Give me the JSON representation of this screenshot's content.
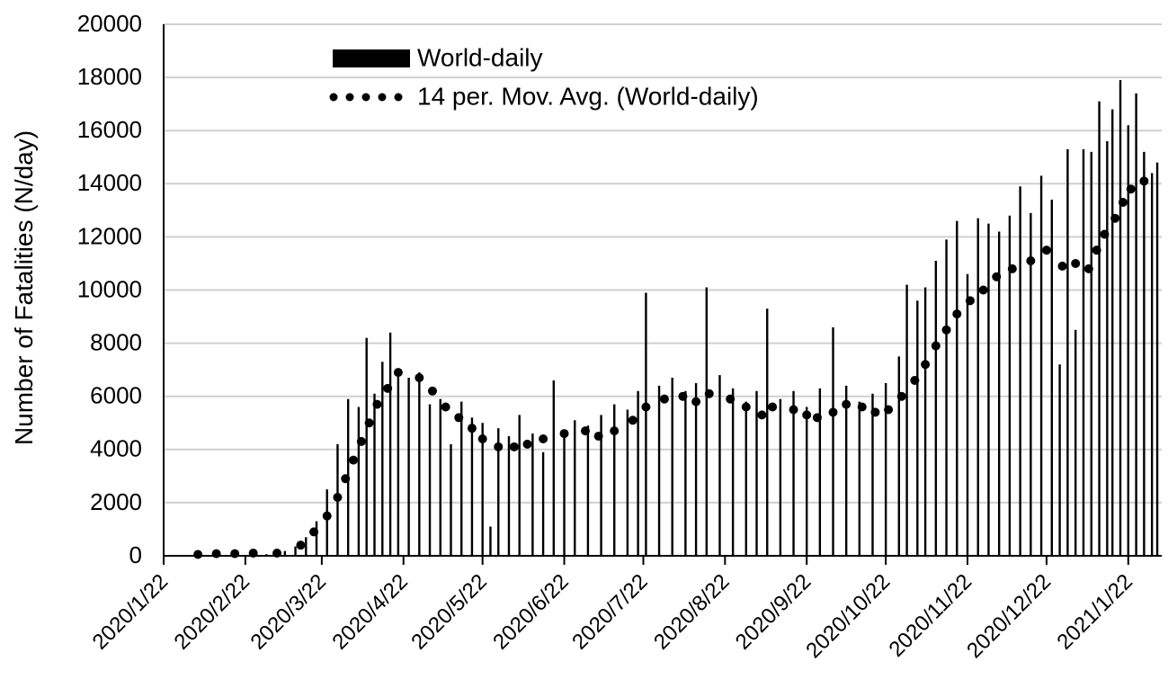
{
  "chart_data": {
    "type": "bar",
    "ylabel": "Number of Fatalities (N/day)",
    "xlabel": "",
    "ylim": [
      0,
      20000
    ],
    "yticks": [
      0,
      2000,
      4000,
      6000,
      8000,
      10000,
      12000,
      14000,
      16000,
      18000,
      20000
    ],
    "x_tick_labels": [
      "2020/1/22",
      "2020/2/22",
      "2020/3/22",
      "2020/4/22",
      "2020/5/22",
      "2020/6/22",
      "2020/7/22",
      "2020/8/22",
      "2020/9/22",
      "2020/10/22",
      "2020/11/22",
      "2020/12/22",
      "2021/1/22"
    ],
    "grid": true,
    "legend_position": "top-center",
    "colors": {
      "bars": "#000000",
      "moving_average": "#000000",
      "grid": "#d0d0d0"
    },
    "series": [
      {
        "name": "World-daily",
        "kind": "bar",
        "points": [
          [
            "2020-02-03",
            50
          ],
          [
            "2020-02-10",
            80
          ],
          [
            "2020-02-17",
            120
          ],
          [
            "2020-02-24",
            100
          ],
          [
            "2020-03-01",
            60
          ],
          [
            "2020-03-08",
            180
          ],
          [
            "2020-03-12",
            350
          ],
          [
            "2020-03-16",
            700
          ],
          [
            "2020-03-20",
            1300
          ],
          [
            "2020-03-24",
            2500
          ],
          [
            "2020-03-28",
            4200
          ],
          [
            "2020-04-01",
            5900
          ],
          [
            "2020-04-05",
            5600
          ],
          [
            "2020-04-08",
            8200
          ],
          [
            "2020-04-11",
            6100
          ],
          [
            "2020-04-14",
            7300
          ],
          [
            "2020-04-17",
            8400
          ],
          [
            "2020-04-20",
            6800
          ],
          [
            "2020-04-24",
            6700
          ],
          [
            "2020-04-28",
            6900
          ],
          [
            "2020-05-02",
            5700
          ],
          [
            "2020-05-06",
            5900
          ],
          [
            "2020-05-10",
            4200
          ],
          [
            "2020-05-14",
            5800
          ],
          [
            "2020-05-18",
            5200
          ],
          [
            "2020-05-22",
            5000
          ],
          [
            "2020-05-25",
            1100
          ],
          [
            "2020-05-28",
            4800
          ],
          [
            "2020-06-01",
            4500
          ],
          [
            "2020-06-05",
            5300
          ],
          [
            "2020-06-10",
            4600
          ],
          [
            "2020-06-14",
            3900
          ],
          [
            "2020-06-18",
            6600
          ],
          [
            "2020-06-22",
            4700
          ],
          [
            "2020-06-26",
            5100
          ],
          [
            "2020-07-01",
            4900
          ],
          [
            "2020-07-06",
            5300
          ],
          [
            "2020-07-11",
            5700
          ],
          [
            "2020-07-16",
            5500
          ],
          [
            "2020-07-20",
            6200
          ],
          [
            "2020-07-23",
            9900
          ],
          [
            "2020-07-28",
            6400
          ],
          [
            "2020-08-02",
            6700
          ],
          [
            "2020-08-07",
            6200
          ],
          [
            "2020-08-11",
            6500
          ],
          [
            "2020-08-15",
            10100
          ],
          [
            "2020-08-20",
            6800
          ],
          [
            "2020-08-25",
            6300
          ],
          [
            "2020-08-30",
            5800
          ],
          [
            "2020-09-03",
            6200
          ],
          [
            "2020-09-07",
            9300
          ],
          [
            "2020-09-12",
            5900
          ],
          [
            "2020-09-17",
            6200
          ],
          [
            "2020-09-22",
            5600
          ],
          [
            "2020-09-27",
            6300
          ],
          [
            "2020-10-02",
            8600
          ],
          [
            "2020-10-07",
            6400
          ],
          [
            "2020-10-12",
            5800
          ],
          [
            "2020-10-17",
            6100
          ],
          [
            "2020-10-22",
            6500
          ],
          [
            "2020-10-27",
            7500
          ],
          [
            "2020-10-30",
            10200
          ],
          [
            "2020-11-03",
            9600
          ],
          [
            "2020-11-06",
            10100
          ],
          [
            "2020-11-10",
            11100
          ],
          [
            "2020-11-14",
            11900
          ],
          [
            "2020-11-18",
            12600
          ],
          [
            "2020-11-22",
            10600
          ],
          [
            "2020-11-26",
            12700
          ],
          [
            "2020-11-30",
            12500
          ],
          [
            "2020-12-04",
            12200
          ],
          [
            "2020-12-08",
            12800
          ],
          [
            "2020-12-12",
            13900
          ],
          [
            "2020-12-16",
            12900
          ],
          [
            "2020-12-20",
            14300
          ],
          [
            "2020-12-24",
            13400
          ],
          [
            "2020-12-27",
            7200
          ],
          [
            "2020-12-30",
            15300
          ],
          [
            "2021-01-02",
            8500
          ],
          [
            "2021-01-05",
            15300
          ],
          [
            "2021-01-08",
            15200
          ],
          [
            "2021-01-11",
            17100
          ],
          [
            "2021-01-14",
            15600
          ],
          [
            "2021-01-16",
            16800
          ],
          [
            "2021-01-19",
            17900
          ],
          [
            "2021-01-22",
            16200
          ],
          [
            "2021-01-25",
            17400
          ],
          [
            "2021-01-28",
            15200
          ],
          [
            "2021-01-31",
            14400
          ],
          [
            "2021-02-02",
            14800
          ]
        ]
      },
      {
        "name": "14 per. Mov. Avg. (World-daily)",
        "kind": "dotted-line",
        "points": [
          [
            "2020-02-04",
            50
          ],
          [
            "2020-02-11",
            80
          ],
          [
            "2020-02-18",
            80
          ],
          [
            "2020-02-25",
            100
          ],
          [
            "2020-03-05",
            100
          ],
          [
            "2020-03-14",
            400
          ],
          [
            "2020-03-19",
            900
          ],
          [
            "2020-03-24",
            1500
          ],
          [
            "2020-03-28",
            2200
          ],
          [
            "2020-03-31",
            2900
          ],
          [
            "2020-04-03",
            3600
          ],
          [
            "2020-04-06",
            4300
          ],
          [
            "2020-04-09",
            5000
          ],
          [
            "2020-04-12",
            5700
          ],
          [
            "2020-04-16",
            6300
          ],
          [
            "2020-04-20",
            6900
          ],
          [
            "2020-04-28",
            6700
          ],
          [
            "2020-05-03",
            6200
          ],
          [
            "2020-05-08",
            5600
          ],
          [
            "2020-05-13",
            5200
          ],
          [
            "2020-05-18",
            4800
          ],
          [
            "2020-05-22",
            4400
          ],
          [
            "2020-05-28",
            4100
          ],
          [
            "2020-06-03",
            4100
          ],
          [
            "2020-06-08",
            4200
          ],
          [
            "2020-06-14",
            4400
          ],
          [
            "2020-06-22",
            4600
          ],
          [
            "2020-06-30",
            4700
          ],
          [
            "2020-07-05",
            4500
          ],
          [
            "2020-07-11",
            4700
          ],
          [
            "2020-07-18",
            5100
          ],
          [
            "2020-07-23",
            5600
          ],
          [
            "2020-07-30",
            5900
          ],
          [
            "2020-08-06",
            6000
          ],
          [
            "2020-08-11",
            5800
          ],
          [
            "2020-08-16",
            6100
          ],
          [
            "2020-08-24",
            5900
          ],
          [
            "2020-08-30",
            5600
          ],
          [
            "2020-09-05",
            5300
          ],
          [
            "2020-09-09",
            5600
          ],
          [
            "2020-09-17",
            5500
          ],
          [
            "2020-09-22",
            5300
          ],
          [
            "2020-09-26",
            5200
          ],
          [
            "2020-10-02",
            5400
          ],
          [
            "2020-10-07",
            5700
          ],
          [
            "2020-10-13",
            5600
          ],
          [
            "2020-10-18",
            5400
          ],
          [
            "2020-10-23",
            5500
          ],
          [
            "2020-10-28",
            6000
          ],
          [
            "2020-11-02",
            6600
          ],
          [
            "2020-11-06",
            7200
          ],
          [
            "2020-11-10",
            7900
          ],
          [
            "2020-11-14",
            8500
          ],
          [
            "2020-11-18",
            9100
          ],
          [
            "2020-11-23",
            9600
          ],
          [
            "2020-11-28",
            10000
          ],
          [
            "2020-12-03",
            10500
          ],
          [
            "2020-12-09",
            10800
          ],
          [
            "2020-12-16",
            11100
          ],
          [
            "2020-12-22",
            11500
          ],
          [
            "2020-12-28",
            10900
          ],
          [
            "2021-01-02",
            11000
          ],
          [
            "2021-01-07",
            10800
          ],
          [
            "2021-01-10",
            11500
          ],
          [
            "2021-01-13",
            12100
          ],
          [
            "2021-01-17",
            12700
          ],
          [
            "2021-01-20",
            13300
          ],
          [
            "2021-01-23",
            13800
          ],
          [
            "2021-01-28",
            14100
          ]
        ]
      }
    ]
  }
}
